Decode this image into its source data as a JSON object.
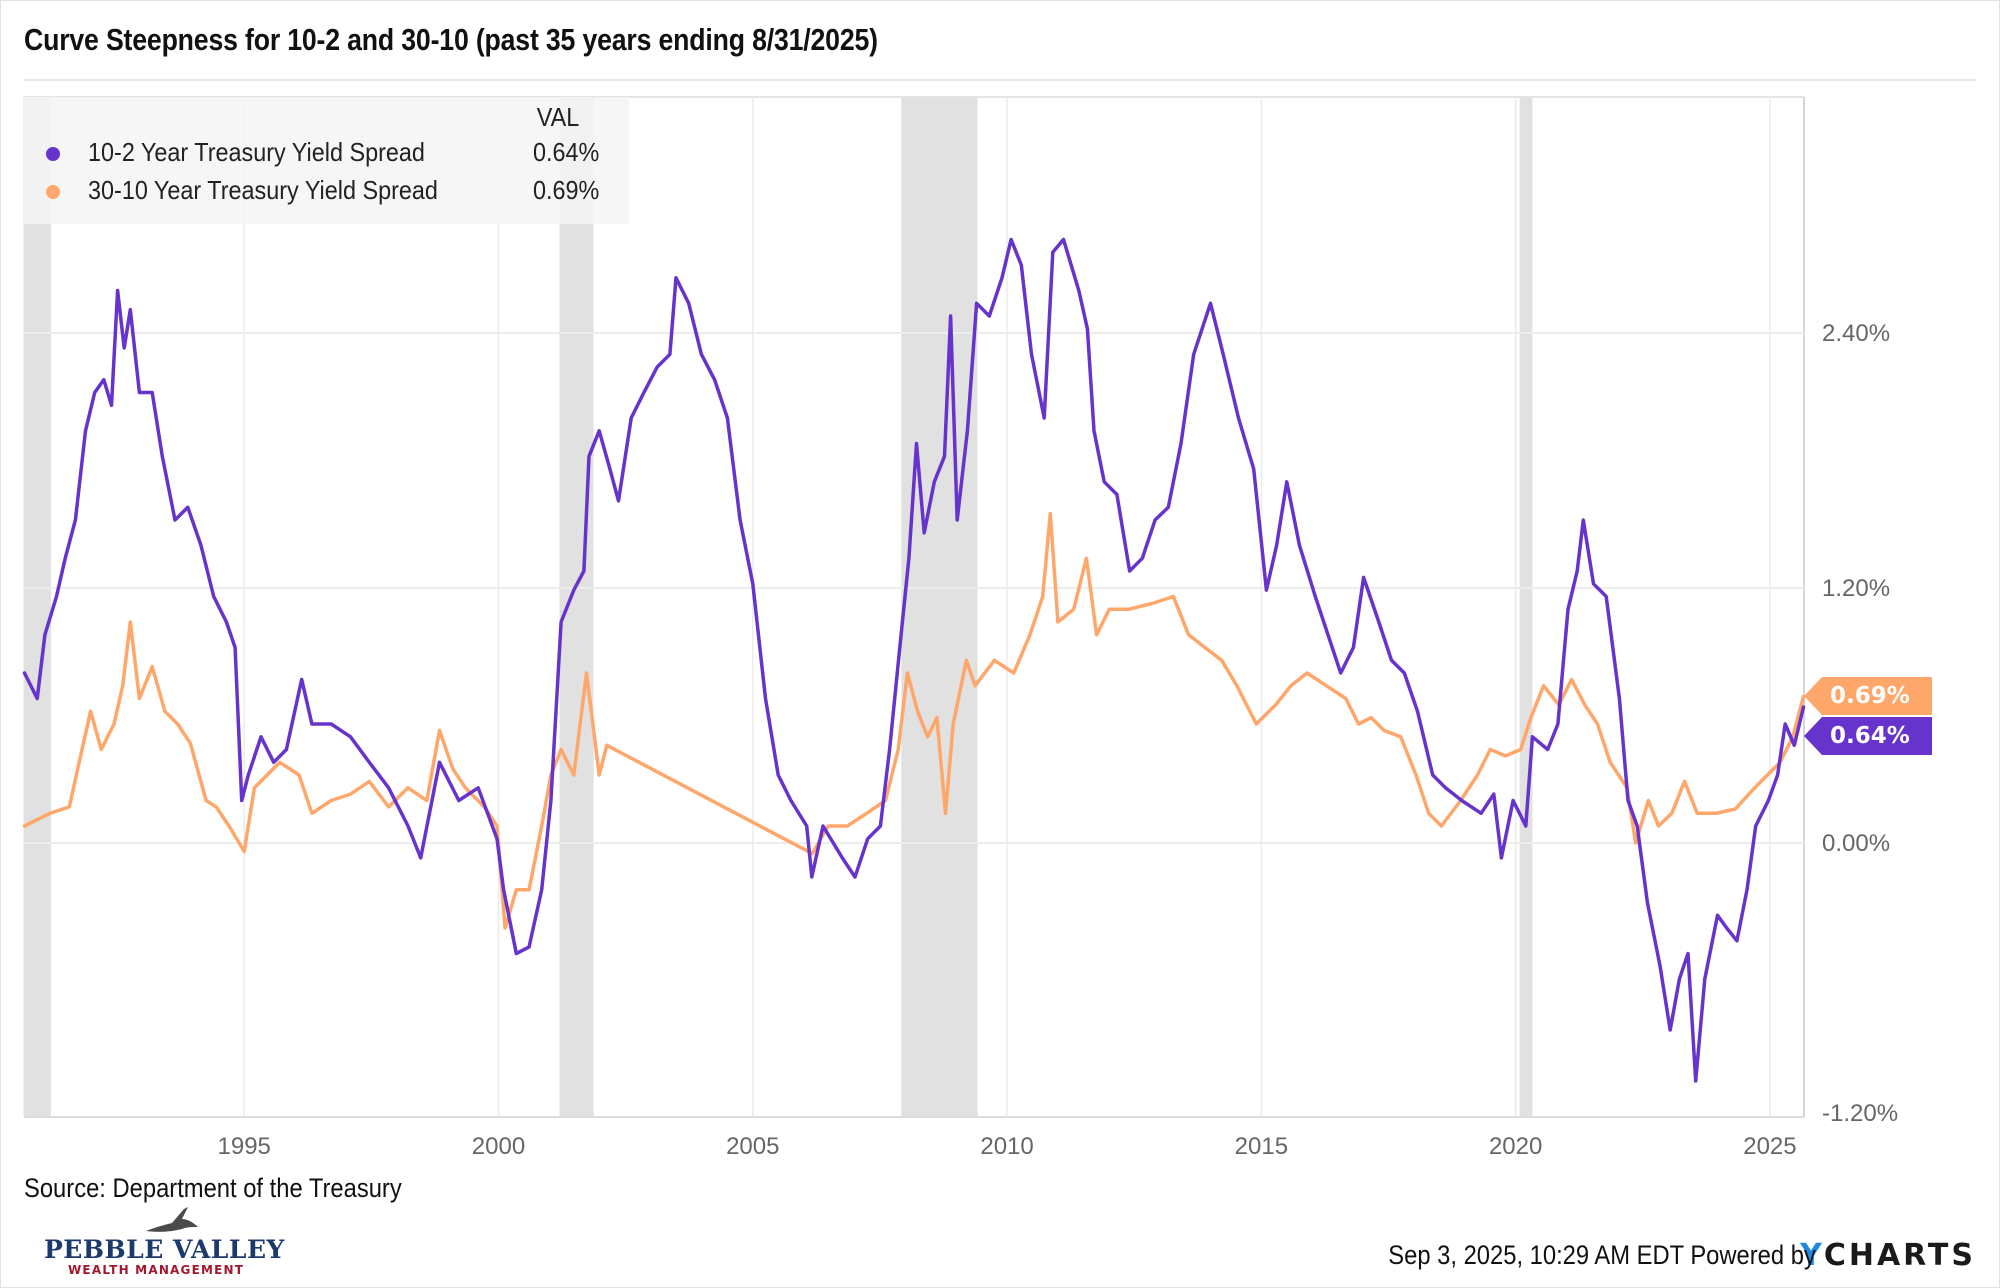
{
  "title": "Curve Steepness for 10-2 and 30-10 (past 35 years ending 8/31/2025)",
  "legend": {
    "header": "VAL",
    "items": [
      {
        "label": "10-2 Year Treasury Yield Spread",
        "value": "0.64%",
        "color": "#6633cc"
      },
      {
        "label": "30-10 Year Treasury Yield Spread",
        "value": "0.69%",
        "color": "#ffa66b"
      }
    ]
  },
  "end_tags": [
    {
      "label": "0.69%",
      "color": "#ffa66b",
      "value": 0.69
    },
    {
      "label": "0.64%",
      "color": "#6633cc",
      "value": 0.64
    }
  ],
  "source": "Source: Department of the Treasury",
  "logo": {
    "name": "PEBBLE VALLEY",
    "subtitle": "WEALTH MANAGEMENT"
  },
  "footer": {
    "timestamp": "Sep 3, 2025, 10:29 AM EDT Powered by",
    "brand_y": "Y",
    "brand_rest": "CHARTS",
    "brand_color": "#1e88e5"
  },
  "chart_data": {
    "type": "line",
    "title": "Curve Steepness for 10-2 and 30-10 (past 35 years ending 8/31/2025)",
    "xlabel": "",
    "ylabel": "",
    "x_range": [
      1990.67,
      2025.67
    ],
    "ylim": [
      -1.2,
      3.2
    ],
    "x_ticks": [
      1995,
      2000,
      2005,
      2010,
      2015,
      2020,
      2025
    ],
    "x_tick_labels": [
      "1995",
      "2000",
      "2005",
      "2010",
      "2015",
      "2020",
      "2025"
    ],
    "y_ticks": [
      -1.2,
      0.0,
      1.2,
      2.4
    ],
    "y_tick_labels": [
      "-1.20%",
      "0.00%",
      "1.20%",
      "2.40%"
    ],
    "y_axis_side": "right",
    "grid": true,
    "legend_position": "top-left",
    "recessions": [
      [
        1990.67,
        1991.2
      ],
      [
        2001.2,
        2001.87
      ],
      [
        2007.92,
        2009.42
      ],
      [
        2020.08,
        2020.33
      ]
    ],
    "series": [
      {
        "name": "10-2 Year Treasury Yield Spread",
        "color": "#6633cc",
        "last_value": 0.64,
        "points": [
          [
            1990.68,
            0.8
          ],
          [
            1990.93,
            0.68
          ],
          [
            1991.08,
            0.98
          ],
          [
            1991.31,
            1.16
          ],
          [
            1991.48,
            1.34
          ],
          [
            1991.68,
            1.52
          ],
          [
            1991.88,
            1.94
          ],
          [
            1992.06,
            2.12
          ],
          [
            1992.24,
            2.18
          ],
          [
            1992.39,
            2.06
          ],
          [
            1992.51,
            2.6
          ],
          [
            1992.64,
            2.33
          ],
          [
            1992.76,
            2.51
          ],
          [
            1992.94,
            2.12
          ],
          [
            1993.19,
            2.12
          ],
          [
            1993.39,
            1.82
          ],
          [
            1993.64,
            1.52
          ],
          [
            1993.89,
            1.58
          ],
          [
            1994.15,
            1.4
          ],
          [
            1994.4,
            1.16
          ],
          [
            1994.65,
            1.04
          ],
          [
            1994.82,
            0.92
          ],
          [
            1994.95,
            0.2
          ],
          [
            1995.08,
            0.32
          ],
          [
            1995.33,
            0.5
          ],
          [
            1995.58,
            0.38
          ],
          [
            1995.83,
            0.44
          ],
          [
            1996.13,
            0.77
          ],
          [
            1996.33,
            0.56
          ],
          [
            1996.71,
            0.56
          ],
          [
            1997.09,
            0.5
          ],
          [
            1997.46,
            0.38
          ],
          [
            1997.84,
            0.26
          ],
          [
            1998.22,
            0.08
          ],
          [
            1998.47,
            -0.07
          ],
          [
            1998.84,
            0.38
          ],
          [
            1999.22,
            0.2
          ],
          [
            1999.6,
            0.26
          ],
          [
            1999.97,
            0.02
          ],
          [
            2000.1,
            -0.22
          ],
          [
            2000.35,
            -0.52
          ],
          [
            2000.6,
            -0.49
          ],
          [
            2000.85,
            -0.22
          ],
          [
            2001.03,
            0.2
          ],
          [
            2001.23,
            1.04
          ],
          [
            2001.48,
            1.19
          ],
          [
            2001.68,
            1.28
          ],
          [
            2001.78,
            1.82
          ],
          [
            2001.98,
            1.94
          ],
          [
            2002.19,
            1.76
          ],
          [
            2002.36,
            1.61
          ],
          [
            2002.61,
            2.0
          ],
          [
            2002.86,
            2.12
          ],
          [
            2003.12,
            2.24
          ],
          [
            2003.37,
            2.3
          ],
          [
            2003.49,
            2.66
          ],
          [
            2003.74,
            2.54
          ],
          [
            2003.99,
            2.3
          ],
          [
            2004.25,
            2.18
          ],
          [
            2004.5,
            2.0
          ],
          [
            2004.75,
            1.52
          ],
          [
            2005.0,
            1.22
          ],
          [
            2005.25,
            0.68
          ],
          [
            2005.5,
            0.32
          ],
          [
            2005.75,
            0.2
          ],
          [
            2006.06,
            0.08
          ],
          [
            2006.16,
            -0.16
          ],
          [
            2006.38,
            0.08
          ],
          [
            2006.76,
            -0.07
          ],
          [
            2007.01,
            -0.16
          ],
          [
            2007.26,
            0.02
          ],
          [
            2007.51,
            0.08
          ],
          [
            2007.69,
            0.44
          ],
          [
            2007.89,
            0.92
          ],
          [
            2008.07,
            1.34
          ],
          [
            2008.22,
            1.88
          ],
          [
            2008.37,
            1.46
          ],
          [
            2008.57,
            1.7
          ],
          [
            2008.77,
            1.82
          ],
          [
            2008.89,
            2.48
          ],
          [
            2009.02,
            1.52
          ],
          [
            2009.22,
            1.94
          ],
          [
            2009.4,
            2.54
          ],
          [
            2009.65,
            2.48
          ],
          [
            2009.9,
            2.66
          ],
          [
            2010.08,
            2.84
          ],
          [
            2010.28,
            2.72
          ],
          [
            2010.48,
            2.3
          ],
          [
            2010.73,
            2.0
          ],
          [
            2010.9,
            2.78
          ],
          [
            2011.11,
            2.84
          ],
          [
            2011.41,
            2.6
          ],
          [
            2011.58,
            2.42
          ],
          [
            2011.71,
            1.94
          ],
          [
            2011.91,
            1.7
          ],
          [
            2012.16,
            1.64
          ],
          [
            2012.41,
            1.28
          ],
          [
            2012.66,
            1.34
          ],
          [
            2012.91,
            1.52
          ],
          [
            2013.17,
            1.58
          ],
          [
            2013.42,
            1.88
          ],
          [
            2013.67,
            2.3
          ],
          [
            2014.0,
            2.54
          ],
          [
            2014.25,
            2.3
          ],
          [
            2014.55,
            2.0
          ],
          [
            2014.85,
            1.76
          ],
          [
            2015.1,
            1.19
          ],
          [
            2015.3,
            1.4
          ],
          [
            2015.5,
            1.7
          ],
          [
            2015.75,
            1.4
          ],
          [
            2016.06,
            1.16
          ],
          [
            2016.31,
            0.98
          ],
          [
            2016.56,
            0.8
          ],
          [
            2016.81,
            0.92
          ],
          [
            2017.01,
            1.25
          ],
          [
            2017.31,
            1.04
          ],
          [
            2017.56,
            0.86
          ],
          [
            2017.81,
            0.8
          ],
          [
            2018.07,
            0.62
          ],
          [
            2018.37,
            0.32
          ],
          [
            2018.62,
            0.26
          ],
          [
            2018.94,
            0.2
          ],
          [
            2019.32,
            0.14
          ],
          [
            2019.57,
            0.23
          ],
          [
            2019.72,
            -0.07
          ],
          [
            2019.95,
            0.2
          ],
          [
            2020.2,
            0.08
          ],
          [
            2020.33,
            0.5
          ],
          [
            2020.63,
            0.44
          ],
          [
            2020.83,
            0.56
          ],
          [
            2021.03,
            1.1
          ],
          [
            2021.21,
            1.28
          ],
          [
            2021.33,
            1.52
          ],
          [
            2021.53,
            1.22
          ],
          [
            2021.78,
            1.16
          ],
          [
            2022.04,
            0.68
          ],
          [
            2022.21,
            0.2
          ],
          [
            2022.39,
            0.08
          ],
          [
            2022.59,
            -0.28
          ],
          [
            2022.84,
            -0.58
          ],
          [
            2023.04,
            -0.88
          ],
          [
            2023.22,
            -0.64
          ],
          [
            2023.39,
            -0.52
          ],
          [
            2023.54,
            -1.12
          ],
          [
            2023.72,
            -0.64
          ],
          [
            2023.97,
            -0.34
          ],
          [
            2024.15,
            -0.4
          ],
          [
            2024.35,
            -0.46
          ],
          [
            2024.55,
            -0.22
          ],
          [
            2024.72,
            0.08
          ],
          [
            2024.97,
            0.2
          ],
          [
            2025.15,
            0.32
          ],
          [
            2025.3,
            0.56
          ],
          [
            2025.48,
            0.46
          ],
          [
            2025.66,
            0.64
          ]
        ]
      },
      {
        "name": "30-10 Year Treasury Yield Spread",
        "color": "#ffa66b",
        "last_value": 0.69,
        "points": [
          [
            1990.68,
            0.08
          ],
          [
            1991.18,
            0.14
          ],
          [
            1991.56,
            0.17
          ],
          [
            1991.81,
            0.44
          ],
          [
            1991.98,
            0.62
          ],
          [
            1992.19,
            0.44
          ],
          [
            1992.44,
            0.56
          ],
          [
            1992.61,
            0.74
          ],
          [
            1992.76,
            1.04
          ],
          [
            1992.94,
            0.68
          ],
          [
            1993.19,
            0.83
          ],
          [
            1993.44,
            0.62
          ],
          [
            1993.69,
            0.56
          ],
          [
            1993.94,
            0.47
          ],
          [
            1994.25,
            0.2
          ],
          [
            1994.45,
            0.17
          ],
          [
            1994.7,
            0.08
          ],
          [
            1995.0,
            -0.04
          ],
          [
            1995.2,
            0.26
          ],
          [
            1995.45,
            0.32
          ],
          [
            1995.7,
            0.38
          ],
          [
            1996.08,
            0.32
          ],
          [
            1996.33,
            0.14
          ],
          [
            1996.71,
            0.2
          ],
          [
            1997.09,
            0.23
          ],
          [
            1997.46,
            0.29
          ],
          [
            1997.84,
            0.17
          ],
          [
            1998.22,
            0.26
          ],
          [
            1998.59,
            0.2
          ],
          [
            1998.84,
            0.53
          ],
          [
            1999.1,
            0.35
          ],
          [
            1999.35,
            0.26
          ],
          [
            1999.72,
            0.17
          ],
          [
            1999.97,
            0.08
          ],
          [
            2000.13,
            -0.4
          ],
          [
            2000.35,
            -0.22
          ],
          [
            2000.6,
            -0.22
          ],
          [
            2000.85,
            0.08
          ],
          [
            2001.03,
            0.32
          ],
          [
            2001.23,
            0.44
          ],
          [
            2001.48,
            0.32
          ],
          [
            2001.73,
            0.8
          ],
          [
            2001.98,
            0.32
          ],
          [
            2002.13,
            0.46
          ],
          [
            2006.17,
            -0.05
          ],
          [
            2006.48,
            0.08
          ],
          [
            2006.86,
            0.08
          ],
          [
            2007.24,
            0.14
          ],
          [
            2007.61,
            0.2
          ],
          [
            2007.86,
            0.44
          ],
          [
            2008.04,
            0.8
          ],
          [
            2008.24,
            0.62
          ],
          [
            2008.44,
            0.5
          ],
          [
            2008.62,
            0.59
          ],
          [
            2008.79,
            0.14
          ],
          [
            2008.94,
            0.56
          ],
          [
            2009.2,
            0.86
          ],
          [
            2009.37,
            0.74
          ],
          [
            2009.75,
            0.86
          ],
          [
            2010.13,
            0.8
          ],
          [
            2010.45,
            0.98
          ],
          [
            2010.7,
            1.16
          ],
          [
            2010.85,
            1.55
          ],
          [
            2011.0,
            1.04
          ],
          [
            2011.31,
            1.1
          ],
          [
            2011.56,
            1.34
          ],
          [
            2011.76,
            0.98
          ],
          [
            2012.01,
            1.1
          ],
          [
            2012.39,
            1.1
          ],
          [
            2012.89,
            1.13
          ],
          [
            2013.27,
            1.16
          ],
          [
            2013.57,
            0.98
          ],
          [
            2013.89,
            0.92
          ],
          [
            2014.22,
            0.86
          ],
          [
            2014.52,
            0.74
          ],
          [
            2014.9,
            0.56
          ],
          [
            2015.28,
            0.65
          ],
          [
            2015.58,
            0.74
          ],
          [
            2015.9,
            0.8
          ],
          [
            2016.28,
            0.74
          ],
          [
            2016.66,
            0.68
          ],
          [
            2016.91,
            0.56
          ],
          [
            2017.16,
            0.59
          ],
          [
            2017.41,
            0.53
          ],
          [
            2017.74,
            0.5
          ],
          [
            2018.04,
            0.32
          ],
          [
            2018.29,
            0.14
          ],
          [
            2018.54,
            0.08
          ],
          [
            2018.92,
            0.2
          ],
          [
            2019.25,
            0.32
          ],
          [
            2019.5,
            0.44
          ],
          [
            2019.8,
            0.41
          ],
          [
            2020.1,
            0.44
          ],
          [
            2020.3,
            0.59
          ],
          [
            2020.55,
            0.74
          ],
          [
            2020.85,
            0.65
          ],
          [
            2021.1,
            0.77
          ],
          [
            2021.36,
            0.65
          ],
          [
            2021.61,
            0.56
          ],
          [
            2021.86,
            0.38
          ],
          [
            2022.19,
            0.26
          ],
          [
            2022.36,
            0.0
          ],
          [
            2022.61,
            0.2
          ],
          [
            2022.81,
            0.08
          ],
          [
            2023.07,
            0.14
          ],
          [
            2023.32,
            0.29
          ],
          [
            2023.57,
            0.14
          ],
          [
            2023.94,
            0.14
          ],
          [
            2024.32,
            0.16
          ],
          [
            2024.7,
            0.26
          ],
          [
            2024.95,
            0.32
          ],
          [
            2025.2,
            0.38
          ],
          [
            2025.45,
            0.5
          ],
          [
            2025.66,
            0.69
          ]
        ]
      }
    ]
  }
}
